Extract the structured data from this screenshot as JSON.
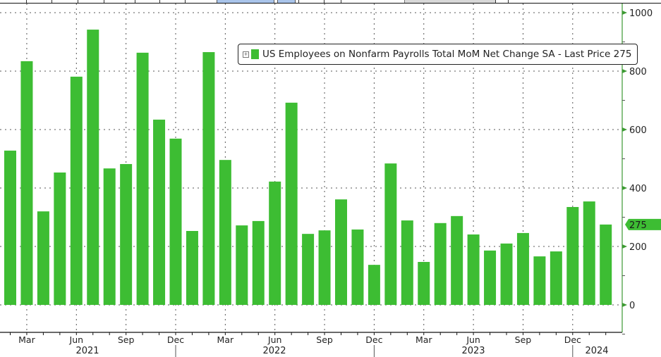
{
  "chart_data": {
    "type": "bar",
    "title": "US Employees on Nonfarm Payrolls Total MoM Net Change SA",
    "legend": [
      "US Employees on Nonfarm Payrolls Total MoM Net Change SA - Last Price 275"
    ],
    "legend_position": "upper right inside plot",
    "xlabel": "",
    "ylabel": "",
    "ylim": [
      -100,
      1000
    ],
    "yticks": [
      0,
      200,
      400,
      600,
      800,
      1000
    ],
    "y_axis_side": "right",
    "grid": true,
    "bar_color": "#3dbd33",
    "last_price": 275,
    "categories": [
      "Feb 2021",
      "Mar 2021",
      "Apr 2021",
      "May 2021",
      "Jun 2021",
      "Jul 2021",
      "Aug 2021",
      "Sep 2021",
      "Oct 2021",
      "Nov 2021",
      "Dec 2021",
      "Jan 2022",
      "Feb 2022",
      "Mar 2022",
      "Apr 2022",
      "May 2022",
      "Jun 2022",
      "Jul 2022",
      "Aug 2022",
      "Sep 2022",
      "Oct 2022",
      "Nov 2022",
      "Dec 2022",
      "Jan 2023",
      "Feb 2023",
      "Mar 2023",
      "Apr 2023",
      "May 2023",
      "Jun 2023",
      "Jul 2023",
      "Aug 2023",
      "Sep 2023",
      "Oct 2023",
      "Nov 2023",
      "Dec 2023",
      "Jan 2024",
      "Feb 2024"
    ],
    "values": [
      528,
      834,
      320,
      453,
      781,
      942,
      467,
      482,
      863,
      634,
      569,
      253,
      865,
      496,
      272,
      287,
      422,
      692,
      243,
      255,
      361,
      258,
      137,
      484,
      289,
      147,
      280,
      304,
      241,
      186,
      210,
      246,
      166,
      183,
      335,
      354,
      275
    ],
    "x_tick_labels": [
      "Mar",
      "Jun",
      "Sep",
      "Dec",
      "Mar",
      "Jun",
      "Sep",
      "Dec",
      "Mar",
      "Jun",
      "Sep",
      "Dec"
    ],
    "x_year_labels": [
      "2021",
      "2022",
      "2023",
      "2024"
    ]
  },
  "legend": {
    "expand_glyph": "+",
    "text": "US Employees on Nonfarm Payrolls Total MoM Net Change SA - Last Price 275"
  },
  "axis": {
    "y_labels": [
      "1000",
      "800",
      "600",
      "400",
      "200",
      "0"
    ],
    "last_price_tag": "275",
    "x_month_labels": [
      "Mar",
      "Jun",
      "Sep",
      "Dec",
      "Mar",
      "Jun",
      "Sep",
      "Dec",
      "Mar",
      "Jun",
      "Sep",
      "Dec"
    ],
    "x_year_labels": [
      "2021",
      "2022",
      "2023",
      "2024"
    ]
  },
  "colors": {
    "bar": "#3dbd33",
    "axis": "#3c9a32",
    "grid": "#555555",
    "tab_highlight": "#a9c4ea"
  }
}
